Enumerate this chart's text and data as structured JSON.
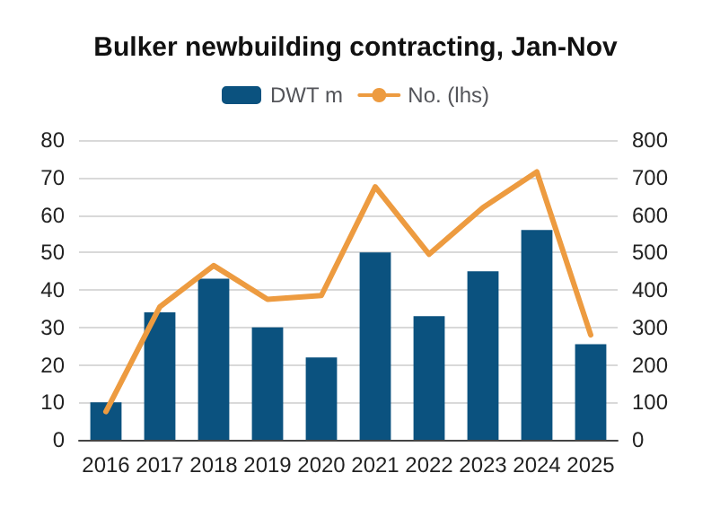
{
  "chart_data": {
    "type": "bar",
    "title": "Bulker newbuilding contracting, Jan-Nov",
    "categories": [
      "2016",
      "2017",
      "2018",
      "2019",
      "2020",
      "2021",
      "2022",
      "2023",
      "2024",
      "2025"
    ],
    "series": [
      {
        "name": "DWT m",
        "color": "#0b527f",
        "values": [
          10,
          34,
          43,
          30,
          22,
          50,
          33,
          45,
          56,
          25.5
        ]
      },
      {
        "name": "No. (lhs)",
        "type": "line",
        "axis": "y2",
        "color": "#ed9b40",
        "values": [
          75,
          355,
          465,
          375,
          385,
          675,
          495,
          620,
          715,
          280
        ]
      }
    ],
    "ylim": [
      0,
      80
    ],
    "yticks": [
      0,
      10,
      20,
      30,
      40,
      50,
      60,
      70,
      80
    ],
    "y2lim": [
      0,
      800
    ],
    "y2ticks": [
      0,
      100,
      200,
      300,
      400,
      500,
      600,
      700,
      800
    ],
    "grid": "y",
    "legend": "top",
    "marker": "none"
  }
}
